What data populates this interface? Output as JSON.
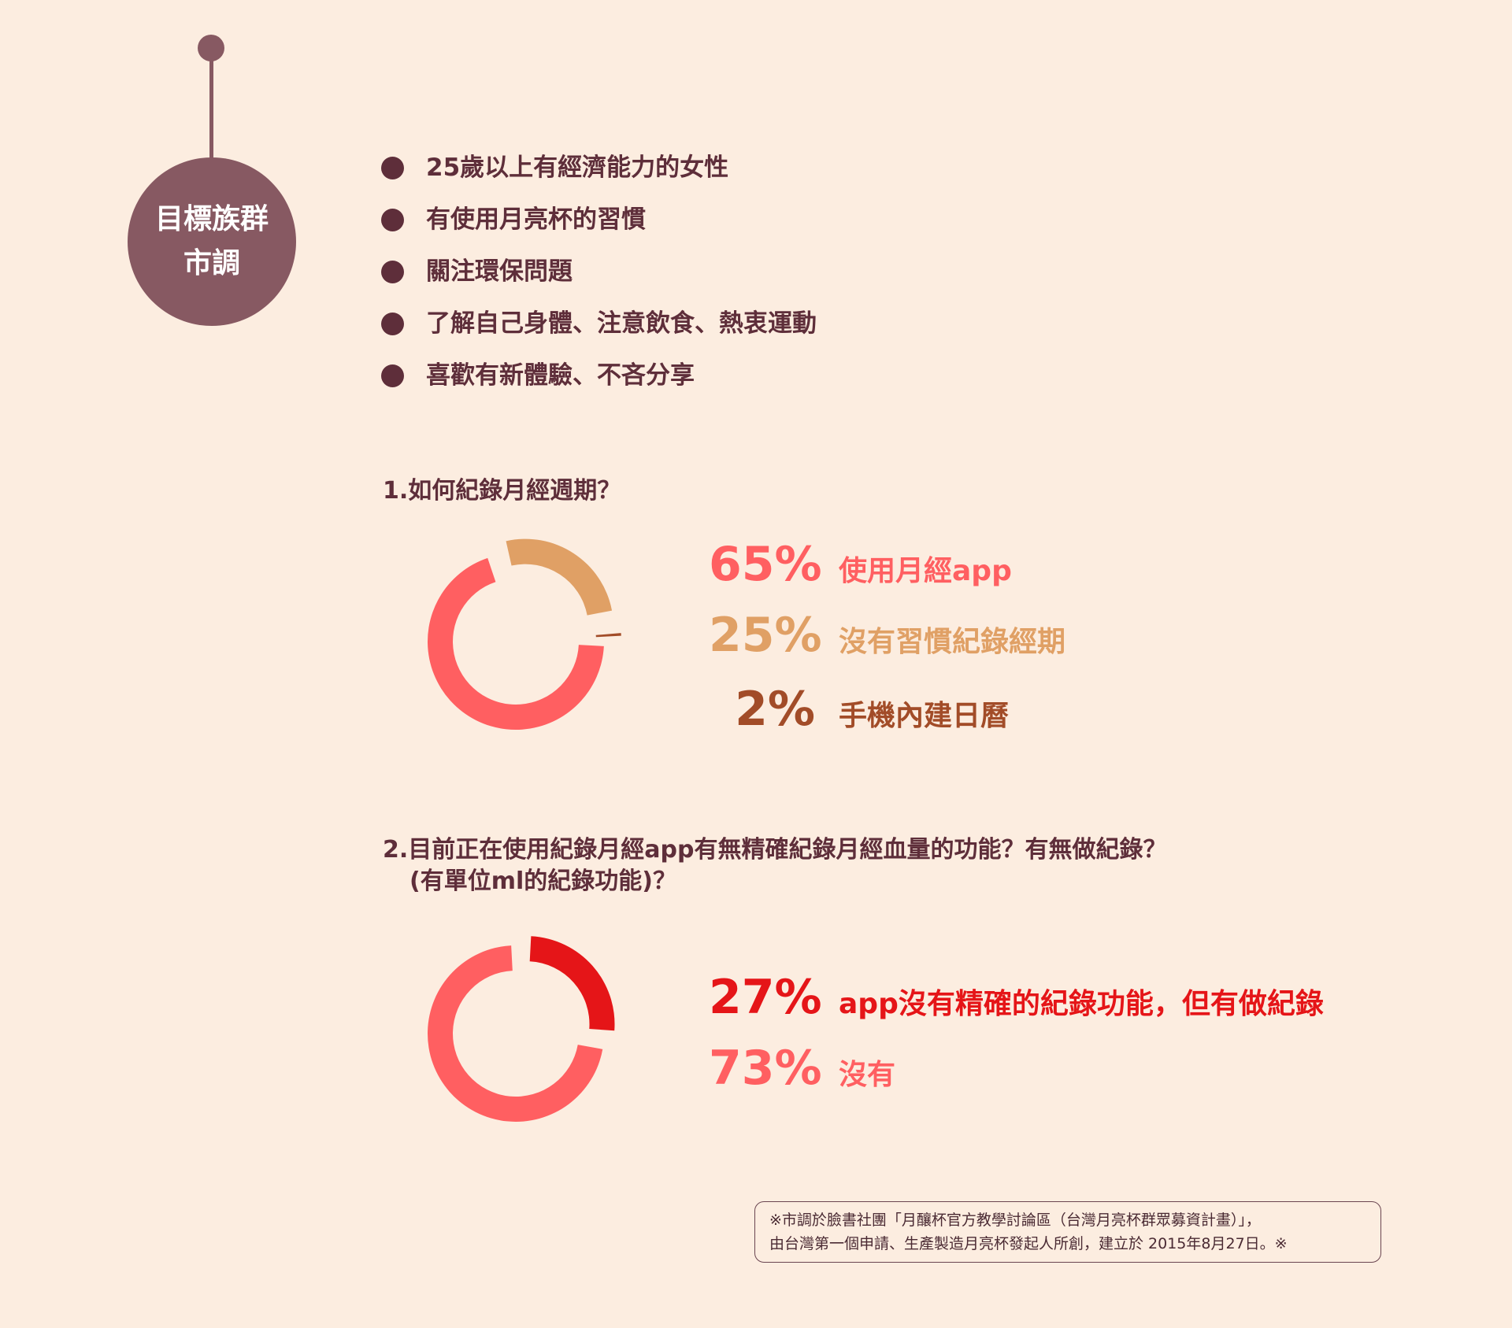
{
  "badge": {
    "line1": "目標族群",
    "line2": "市調",
    "color": "#875962"
  },
  "bullets": [
    "25歲以上有經濟能力的女性",
    "有使用月亮杯的習慣",
    "關注環保問題",
    "了解自己身體、注意飲食、熱衷運動",
    "喜歡有新體驗、不吝分享"
  ],
  "questions": {
    "q1": "1.如何紀錄月經週期？",
    "q2_line1": "2.目前正在使用紀錄月經app有無精確紀錄月經血量的功能？有無做紀錄？",
    "q2_line2": "(有單位ml的紀錄功能)？"
  },
  "chart_data": [
    {
      "type": "pie",
      "title": "1.如何紀錄月經週期？",
      "slices": [
        {
          "label": "使用月經app",
          "value": 65,
          "display": "65%",
          "color": "#ff5f61"
        },
        {
          "label": "沒有習慣紀錄經期",
          "value": 25,
          "display": "25%",
          "color": "#e0a065"
        },
        {
          "label": "手機內建日曆",
          "value": 2,
          "display": "2%",
          "color": "#a24c28"
        }
      ]
    },
    {
      "type": "pie",
      "title": "2.目前正在使用紀錄月經app有無精確紀錄月經血量的功能？有無做紀錄？(有單位ml的紀錄功能)？",
      "slices": [
        {
          "label": "app沒有精確的紀錄功能，但有做紀錄",
          "value": 27,
          "display": "27%",
          "color": "#e51518"
        },
        {
          "label": "沒有",
          "value": 73,
          "display": "73%",
          "color": "#ff5f61"
        }
      ]
    }
  ],
  "note": {
    "line1": "※市調於臉書社團「月釀杯官方教學討論區（台灣月亮杯群眾募資計畫）」，",
    "line2": "由台灣第一個申請、生產製造月亮杯發起人所創，建立於 2015年8月27日。※"
  }
}
